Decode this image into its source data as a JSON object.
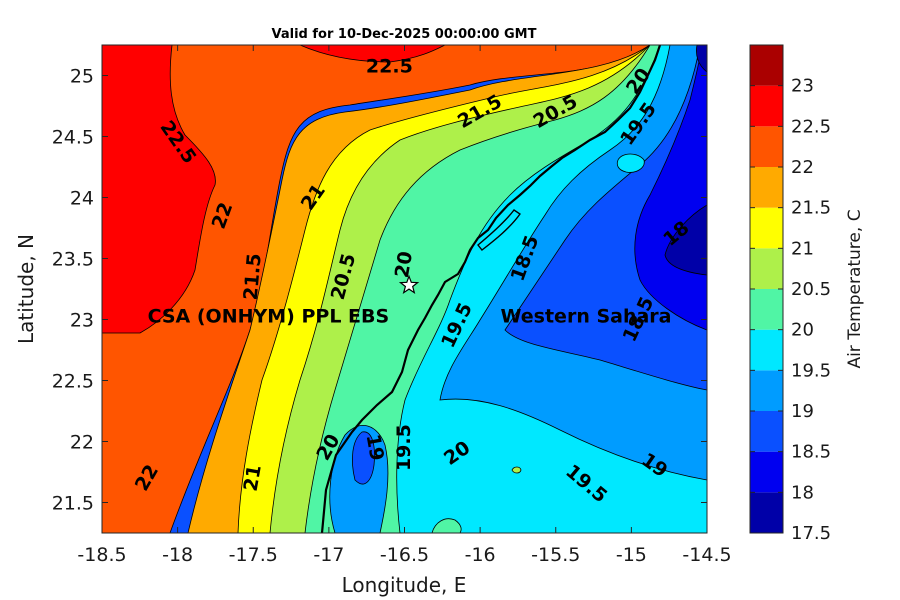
{
  "chart_data": {
    "type": "contour",
    "title": "Valid for 10-Dec-2025 00:00:00 GMT",
    "xlabel": "Longitude, E",
    "ylabel": "Latitude, N",
    "xlim": [
      -18.5,
      -14.5
    ],
    "ylim": [
      21.25,
      25.25
    ],
    "x_ticks": [
      "-18.5",
      "-18",
      "-17.5",
      "-17",
      "-16.5",
      "-16",
      "-15.5",
      "-15",
      "-14.5"
    ],
    "y_ticks": [
      "21.5",
      "22",
      "22.5",
      "23",
      "23.5",
      "24",
      "24.5",
      "25"
    ],
    "colorbar": {
      "label": "Air Temperature, C",
      "levels": [
        17.5,
        18,
        18.5,
        19,
        19.5,
        20,
        20.5,
        21,
        21.5,
        22,
        22.5,
        23
      ],
      "tick_labels": [
        "17.5",
        "18",
        "18.5",
        "19",
        "19.5",
        "20",
        "20.5",
        "21",
        "21.5",
        "22",
        "22.5",
        "23"
      ],
      "colors": [
        "#0000a8",
        "#0000f0",
        "#0a50ff",
        "#009cff",
        "#00e8ff",
        "#50f5a5",
        "#aef04a",
        "#ffff00",
        "#ffaa00",
        "#ff5500",
        "#ff0000",
        "#aa0000"
      ]
    },
    "contour_labels": [
      {
        "text": "22.5",
        "lon": -16.6,
        "lat": 25.07,
        "angle": 0
      },
      {
        "text": "22.5",
        "lon": -18.0,
        "lat": 24.45,
        "angle": 55
      },
      {
        "text": "22",
        "lon": -17.7,
        "lat": 23.85,
        "angle": -70
      },
      {
        "text": "21.5",
        "lon": -16.0,
        "lat": 24.7,
        "angle": -30
      },
      {
        "text": "20.5",
        "lon": -15.5,
        "lat": 24.7,
        "angle": -30
      },
      {
        "text": "20",
        "lon": -14.95,
        "lat": 24.95,
        "angle": -55
      },
      {
        "text": "19.5",
        "lon": -14.95,
        "lat": 24.6,
        "angle": -55
      },
      {
        "text": "21",
        "lon": -17.1,
        "lat": 24.0,
        "angle": -55
      },
      {
        "text": "18",
        "lon": -14.7,
        "lat": 23.7,
        "angle": -40
      },
      {
        "text": "18.5",
        "lon": -15.7,
        "lat": 23.5,
        "angle": -70
      },
      {
        "text": "21.5",
        "lon": -17.5,
        "lat": 23.35,
        "angle": -85
      },
      {
        "text": "20.5",
        "lon": -16.9,
        "lat": 23.35,
        "angle": -75
      },
      {
        "text": "20",
        "lon": -16.5,
        "lat": 23.45,
        "angle": -80
      },
      {
        "text": "19.5",
        "lon": -16.15,
        "lat": 22.95,
        "angle": -65
      },
      {
        "text": "18.5",
        "lon": -14.95,
        "lat": 23.0,
        "angle": -65
      },
      {
        "text": "20",
        "lon": -17.0,
        "lat": 21.95,
        "angle": -60
      },
      {
        "text": "19",
        "lon": -16.7,
        "lat": 21.95,
        "angle": 80
      },
      {
        "text": "19.5",
        "lon": -16.5,
        "lat": 21.95,
        "angle": -90
      },
      {
        "text": "20",
        "lon": -16.15,
        "lat": 21.9,
        "angle": -35
      },
      {
        "text": "19.5",
        "lon": -15.3,
        "lat": 21.65,
        "angle": 40
      },
      {
        "text": "19",
        "lon": -14.85,
        "lat": 21.8,
        "angle": 35
      },
      {
        "text": "22",
        "lon": -18.2,
        "lat": 21.7,
        "angle": -60
      },
      {
        "text": "21",
        "lon": -17.5,
        "lat": 21.7,
        "angle": -80
      }
    ],
    "annotations": [
      {
        "text": "CSA (ONHYM) PPL EBS",
        "lon": -17.4,
        "lat": 23.02
      },
      {
        "text": "Western Sahara",
        "lon": -15.3,
        "lat": 23.02
      }
    ],
    "marker": {
      "symbol": "star",
      "lon": -16.47,
      "lat": 23.28
    }
  }
}
